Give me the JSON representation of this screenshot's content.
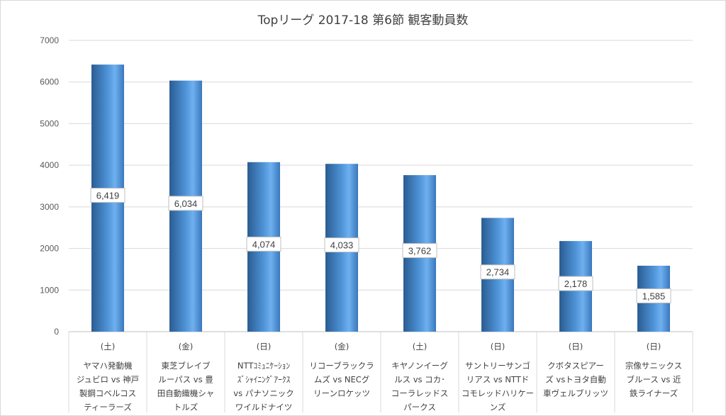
{
  "chart_data": {
    "type": "bar",
    "title": "Topリーグ 2017-18 第6節 観客動員数",
    "ylim": [
      0,
      7000
    ],
    "yticks": [
      0,
      1000,
      2000,
      3000,
      4000,
      5000,
      6000,
      7000
    ],
    "grid": true,
    "categories": [
      [
        "(土)",
        "ヤマハ発動機",
        "ジュビロ vs 神戸",
        "製鋼コベルコス",
        "ティーラーズ"
      ],
      [
        "(金)",
        "東芝ブレイブ",
        "ルーパス vs 豊",
        "田自動織機シャ",
        "トルズ"
      ],
      [
        "(日)",
        "NTTｺﾐｭﾆｹｰｼｮﾝ",
        "ｽﾞｼｬｲﾆﾝｸﾞｱｰｸｽ",
        "vs パナソニック",
        "ワイルドナイツ"
      ],
      [
        "(金)",
        "リコーブラックラ",
        "ムズ vs NECグ",
        "リーンロケッツ"
      ],
      [
        "(土)",
        "キヤノンイーグ",
        "ルス vs コカ･",
        "コーラレッドス",
        "パークス"
      ],
      [
        "(日)",
        "サントリーサンゴ",
        "リアス vs NTTド",
        "コモレッドハリケー",
        "ンズ"
      ],
      [
        "(日)",
        "クボタスピアー",
        "ズ vsトヨタ自動",
        "車ヴェルブリッツ"
      ],
      [
        "(日)",
        "宗像サニックス",
        "ブルース vs 近",
        "鉄ライナーズ"
      ]
    ],
    "values": [
      6419,
      6034,
      4074,
      4033,
      3762,
      2734,
      2178,
      1585
    ],
    "data_labels": [
      "6,419",
      "6,034",
      "4,074",
      "4,033",
      "3,762",
      "2,734",
      "2,178",
      "1,585"
    ],
    "bar_color": "#4a8bd0"
  }
}
